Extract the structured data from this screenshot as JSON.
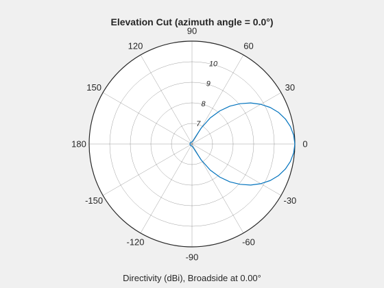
{
  "title": "Elevation Cut (azimuth angle = 0.0°)",
  "caption": "Directivity (dBi), Broadside at 0.00°",
  "colors": {
    "background": "#f0f0f0",
    "axes_face": "#ffffff",
    "grid": "#262626",
    "trace": "#0072bd"
  },
  "chart_data": {
    "type": "line",
    "coordinate_system": "polar",
    "angle_unit": "degrees",
    "angle_zero_direction": "right",
    "angle_direction": "counterclockwise",
    "angle_ticks": [
      "0",
      "30",
      "60",
      "90",
      "120",
      "150",
      "180",
      "-150",
      "-120",
      "-90",
      "-60",
      "-30"
    ],
    "angle_tick_values": [
      0,
      30,
      60,
      90,
      120,
      150,
      180,
      -150,
      -120,
      -90,
      -60,
      -30
    ],
    "radial_ticks": [
      "7",
      "8",
      "9",
      "10"
    ],
    "radial_tick_values": [
      7,
      8,
      9,
      10
    ],
    "radial_range": [
      6,
      11
    ],
    "grid": true,
    "series": [
      {
        "theta": [
          0,
          5,
          10,
          15,
          20,
          25,
          30,
          35,
          40,
          45,
          50,
          55,
          60,
          70,
          80,
          90,
          120,
          150,
          180,
          -150,
          -120,
          -90,
          -80,
          -70,
          -60,
          -55,
          -50,
          -45,
          -40,
          -35,
          -30,
          -25,
          -20,
          -15,
          -10,
          -5
        ],
        "r": [
          11.0,
          10.96,
          10.86,
          10.7,
          10.48,
          10.2,
          9.86,
          9.48,
          9.05,
          8.6,
          8.1,
          7.55,
          6.9,
          6.2,
          6.12,
          6.1,
          6.1,
          6.1,
          6.1,
          6.1,
          6.1,
          6.1,
          6.12,
          6.2,
          6.9,
          7.55,
          8.1,
          8.6,
          9.05,
          9.48,
          9.86,
          10.2,
          10.48,
          10.7,
          10.86,
          10.96
        ]
      }
    ]
  }
}
